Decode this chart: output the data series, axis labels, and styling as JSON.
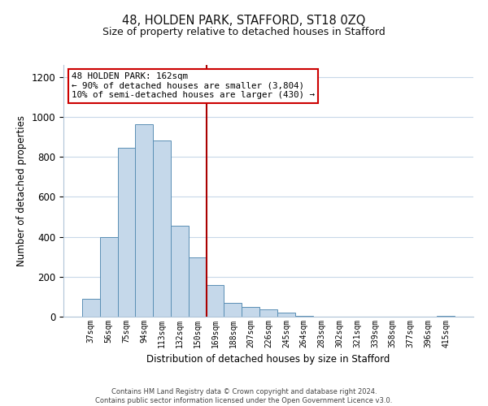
{
  "title_line1": "48, HOLDEN PARK, STAFFORD, ST18 0ZQ",
  "title_line2": "Size of property relative to detached houses in Stafford",
  "xlabel": "Distribution of detached houses by size in Stafford",
  "ylabel": "Number of detached properties",
  "bar_labels": [
    "37sqm",
    "56sqm",
    "75sqm",
    "94sqm",
    "113sqm",
    "132sqm",
    "150sqm",
    "169sqm",
    "188sqm",
    "207sqm",
    "226sqm",
    "245sqm",
    "264sqm",
    "283sqm",
    "302sqm",
    "321sqm",
    "339sqm",
    "358sqm",
    "377sqm",
    "396sqm",
    "415sqm"
  ],
  "bar_values": [
    90,
    400,
    845,
    965,
    880,
    455,
    295,
    160,
    70,
    50,
    35,
    20,
    5,
    0,
    0,
    0,
    0,
    0,
    0,
    0,
    5
  ],
  "bar_color": "#c5d8ea",
  "bar_edge_color": "#5a8fb5",
  "vline_color": "#aa0000",
  "annotation_title": "48 HOLDEN PARK: 162sqm",
  "annotation_line1": "← 90% of detached houses are smaller (3,804)",
  "annotation_line2": "10% of semi-detached houses are larger (430) →",
  "ylim": [
    0,
    1260
  ],
  "yticks": [
    0,
    200,
    400,
    600,
    800,
    1000,
    1200
  ],
  "footer_line1": "Contains HM Land Registry data © Crown copyright and database right 2024.",
  "footer_line2": "Contains public sector information licensed under the Open Government Licence v3.0.",
  "background_color": "#ffffff",
  "grid_color": "#c8d8e8"
}
